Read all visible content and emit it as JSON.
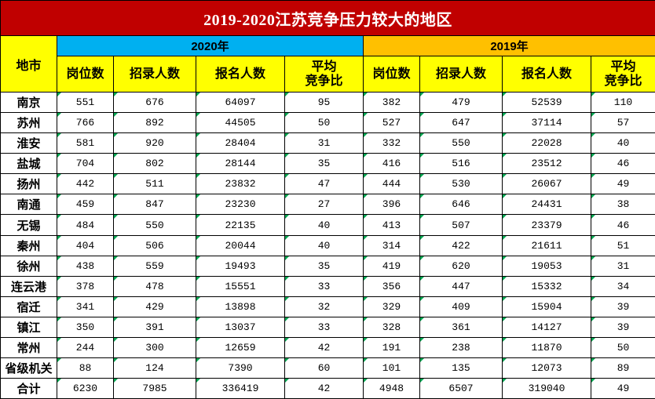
{
  "title": "2019-2020江苏竞争压力较大的地区",
  "headers": {
    "city": "地市",
    "group_2020": "2020年",
    "group_2019": "2019年",
    "positions": "岗位数",
    "recruits": "招录人数",
    "applicants": "报名人数",
    "ratio_line1": "平均",
    "ratio_line2": "竞争比"
  },
  "rows": [
    {
      "city": "南京",
      "y2020": [
        "551",
        "676",
        "64097",
        "95"
      ],
      "y2019": [
        "382",
        "479",
        "52539",
        "110"
      ]
    },
    {
      "city": "苏州",
      "y2020": [
        "766",
        "892",
        "44505",
        "50"
      ],
      "y2019": [
        "527",
        "647",
        "37114",
        "57"
      ]
    },
    {
      "city": "淮安",
      "y2020": [
        "581",
        "920",
        "28404",
        "31"
      ],
      "y2019": [
        "332",
        "550",
        "22028",
        "40"
      ]
    },
    {
      "city": "盐城",
      "y2020": [
        "704",
        "802",
        "28144",
        "35"
      ],
      "y2019": [
        "416",
        "516",
        "23512",
        "46"
      ]
    },
    {
      "city": "扬州",
      "y2020": [
        "442",
        "511",
        "23832",
        "47"
      ],
      "y2019": [
        "444",
        "530",
        "26067",
        "49"
      ]
    },
    {
      "city": "南通",
      "y2020": [
        "459",
        "847",
        "23230",
        "27"
      ],
      "y2019": [
        "396",
        "646",
        "24431",
        "38"
      ]
    },
    {
      "city": "无锡",
      "y2020": [
        "484",
        "550",
        "22135",
        "40"
      ],
      "y2019": [
        "413",
        "507",
        "23379",
        "46"
      ]
    },
    {
      "city": "秦州",
      "y2020": [
        "404",
        "506",
        "20044",
        "40"
      ],
      "y2019": [
        "314",
        "422",
        "21611",
        "51"
      ]
    },
    {
      "city": "徐州",
      "y2020": [
        "438",
        "559",
        "19493",
        "35"
      ],
      "y2019": [
        "419",
        "620",
        "19053",
        "31"
      ]
    },
    {
      "city": "连云港",
      "y2020": [
        "378",
        "478",
        "15551",
        "33"
      ],
      "y2019": [
        "356",
        "447",
        "15332",
        "34"
      ]
    },
    {
      "city": "宿迁",
      "y2020": [
        "341",
        "429",
        "13898",
        "32"
      ],
      "y2019": [
        "329",
        "409",
        "15904",
        "39"
      ]
    },
    {
      "city": "镇江",
      "y2020": [
        "350",
        "391",
        "13037",
        "33"
      ],
      "y2019": [
        "328",
        "361",
        "14127",
        "39"
      ]
    },
    {
      "city": "常州",
      "y2020": [
        "244",
        "300",
        "12659",
        "42"
      ],
      "y2019": [
        "191",
        "238",
        "11870",
        "50"
      ]
    },
    {
      "city": "省级机关",
      "y2020": [
        "88",
        "124",
        "7390",
        "60"
      ],
      "y2019": [
        "101",
        "135",
        "12073",
        "89"
      ]
    },
    {
      "city": "合计",
      "y2020": [
        "6230",
        "7985",
        "336419",
        "42"
      ],
      "y2019": [
        "4948",
        "6507",
        "319040",
        "49"
      ]
    }
  ],
  "colors": {
    "title_bg": "#c00000",
    "title_text": "#ffffff",
    "header_yellow": "#ffff00",
    "group_2020_bg": "#00b0f0",
    "group_2019_bg": "#ffc000",
    "cell_marker_green": "#00a651"
  }
}
